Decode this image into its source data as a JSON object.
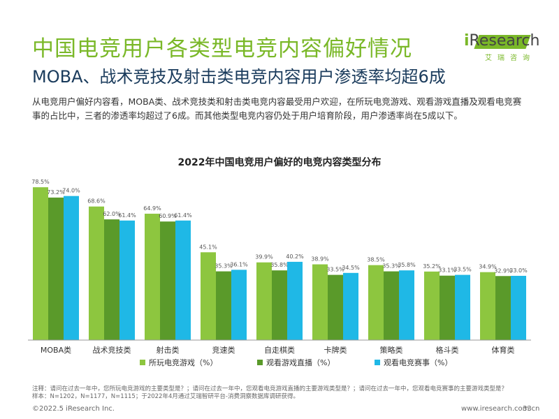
{
  "header": {
    "title": "中国电竞用户各类型电竞内容偏好情况",
    "subtitle": "MOBA、战术竞技及射击类电竞内容用户渗透率均超6成",
    "description": "从电竞用户偏好内容看，MOBA类、战术竞技类和射击类电竞内容最受用户欢迎，在所玩电竞游戏、观看游戏直播及观看电竞赛事的占比中，三者的渗透率均超过了6成。而其他类型电竞内容仍处于用户培育阶段，用户渗透率尚在5成以下。"
  },
  "logo": {
    "i": "i",
    "word": "Research",
    "cn": "艾瑞咨询"
  },
  "chart_data": {
    "type": "bar",
    "title": "2022年中国电竞用户偏好的电竞内容类型分布",
    "categories": [
      "MOBA类",
      "战术竞技类",
      "射击类",
      "竞速类",
      "自走棋类",
      "卡牌类",
      "策略类",
      "格斗类",
      "体育类"
    ],
    "series": [
      {
        "name": "所玩电竞游戏（%）",
        "color": "#8dc63f",
        "values": [
          78.5,
          68.6,
          64.9,
          45.1,
          39.9,
          38.9,
          38.5,
          35.2,
          34.9
        ]
      },
      {
        "name": "观看游戏直播（%）",
        "color": "#5a9a2a",
        "values": [
          73.2,
          62.0,
          60.9,
          35.3,
          35.8,
          33.5,
          35.3,
          33.1,
          32.9
        ]
      },
      {
        "name": "观看电竞赛事（%）",
        "color": "#1fb8e6",
        "values": [
          74.0,
          61.4,
          61.4,
          36.1,
          40.2,
          34.5,
          35.8,
          33.5,
          33.0
        ]
      }
    ],
    "ylim": [
      0,
      85
    ],
    "grid": false,
    "legend": "bottom",
    "label_suffix": "%"
  },
  "footer": {
    "note_line1": "注释：请问在过去一年中，您所玩电竞游戏的主要类型是？；请问在过去一年中，您观看电竞游戏直播的主要游戏类型是？；请问在过去一年中，您观看电竞赛事的主要游戏类型是？",
    "note_line2": "样本：N=1202，N=1177，N=1115；于2022年4月通过艾瑞智研平台-消费洞察数据库调研获得。",
    "copyright": "©2022.5 iResearch Inc.",
    "site": "www.iresearch.com.cn",
    "page": "33"
  }
}
